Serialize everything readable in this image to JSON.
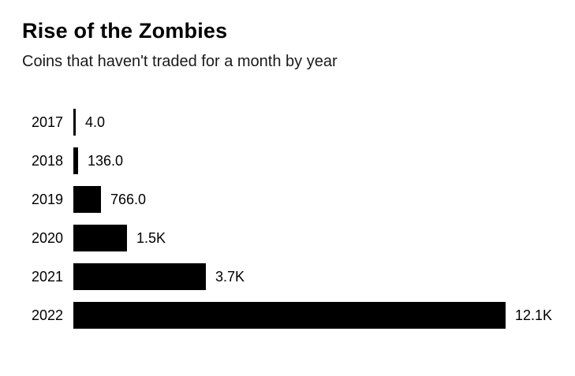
{
  "chart_data": {
    "type": "bar",
    "orientation": "horizontal",
    "title": "Rise of the Zombies",
    "subtitle": "Coins that haven't traded for a month by year",
    "categories": [
      "2017",
      "2018",
      "2019",
      "2020",
      "2021",
      "2022"
    ],
    "values": [
      4,
      136,
      766,
      1500,
      3700,
      12100
    ],
    "value_labels": [
      "4.0",
      "136.0",
      "766.0",
      "1.5K",
      "3.7K",
      "12.1K"
    ],
    "xlim": [
      0,
      12100
    ],
    "bar_color": "#000000",
    "background_color": "#ffffff",
    "grid": false,
    "legend": false
  }
}
